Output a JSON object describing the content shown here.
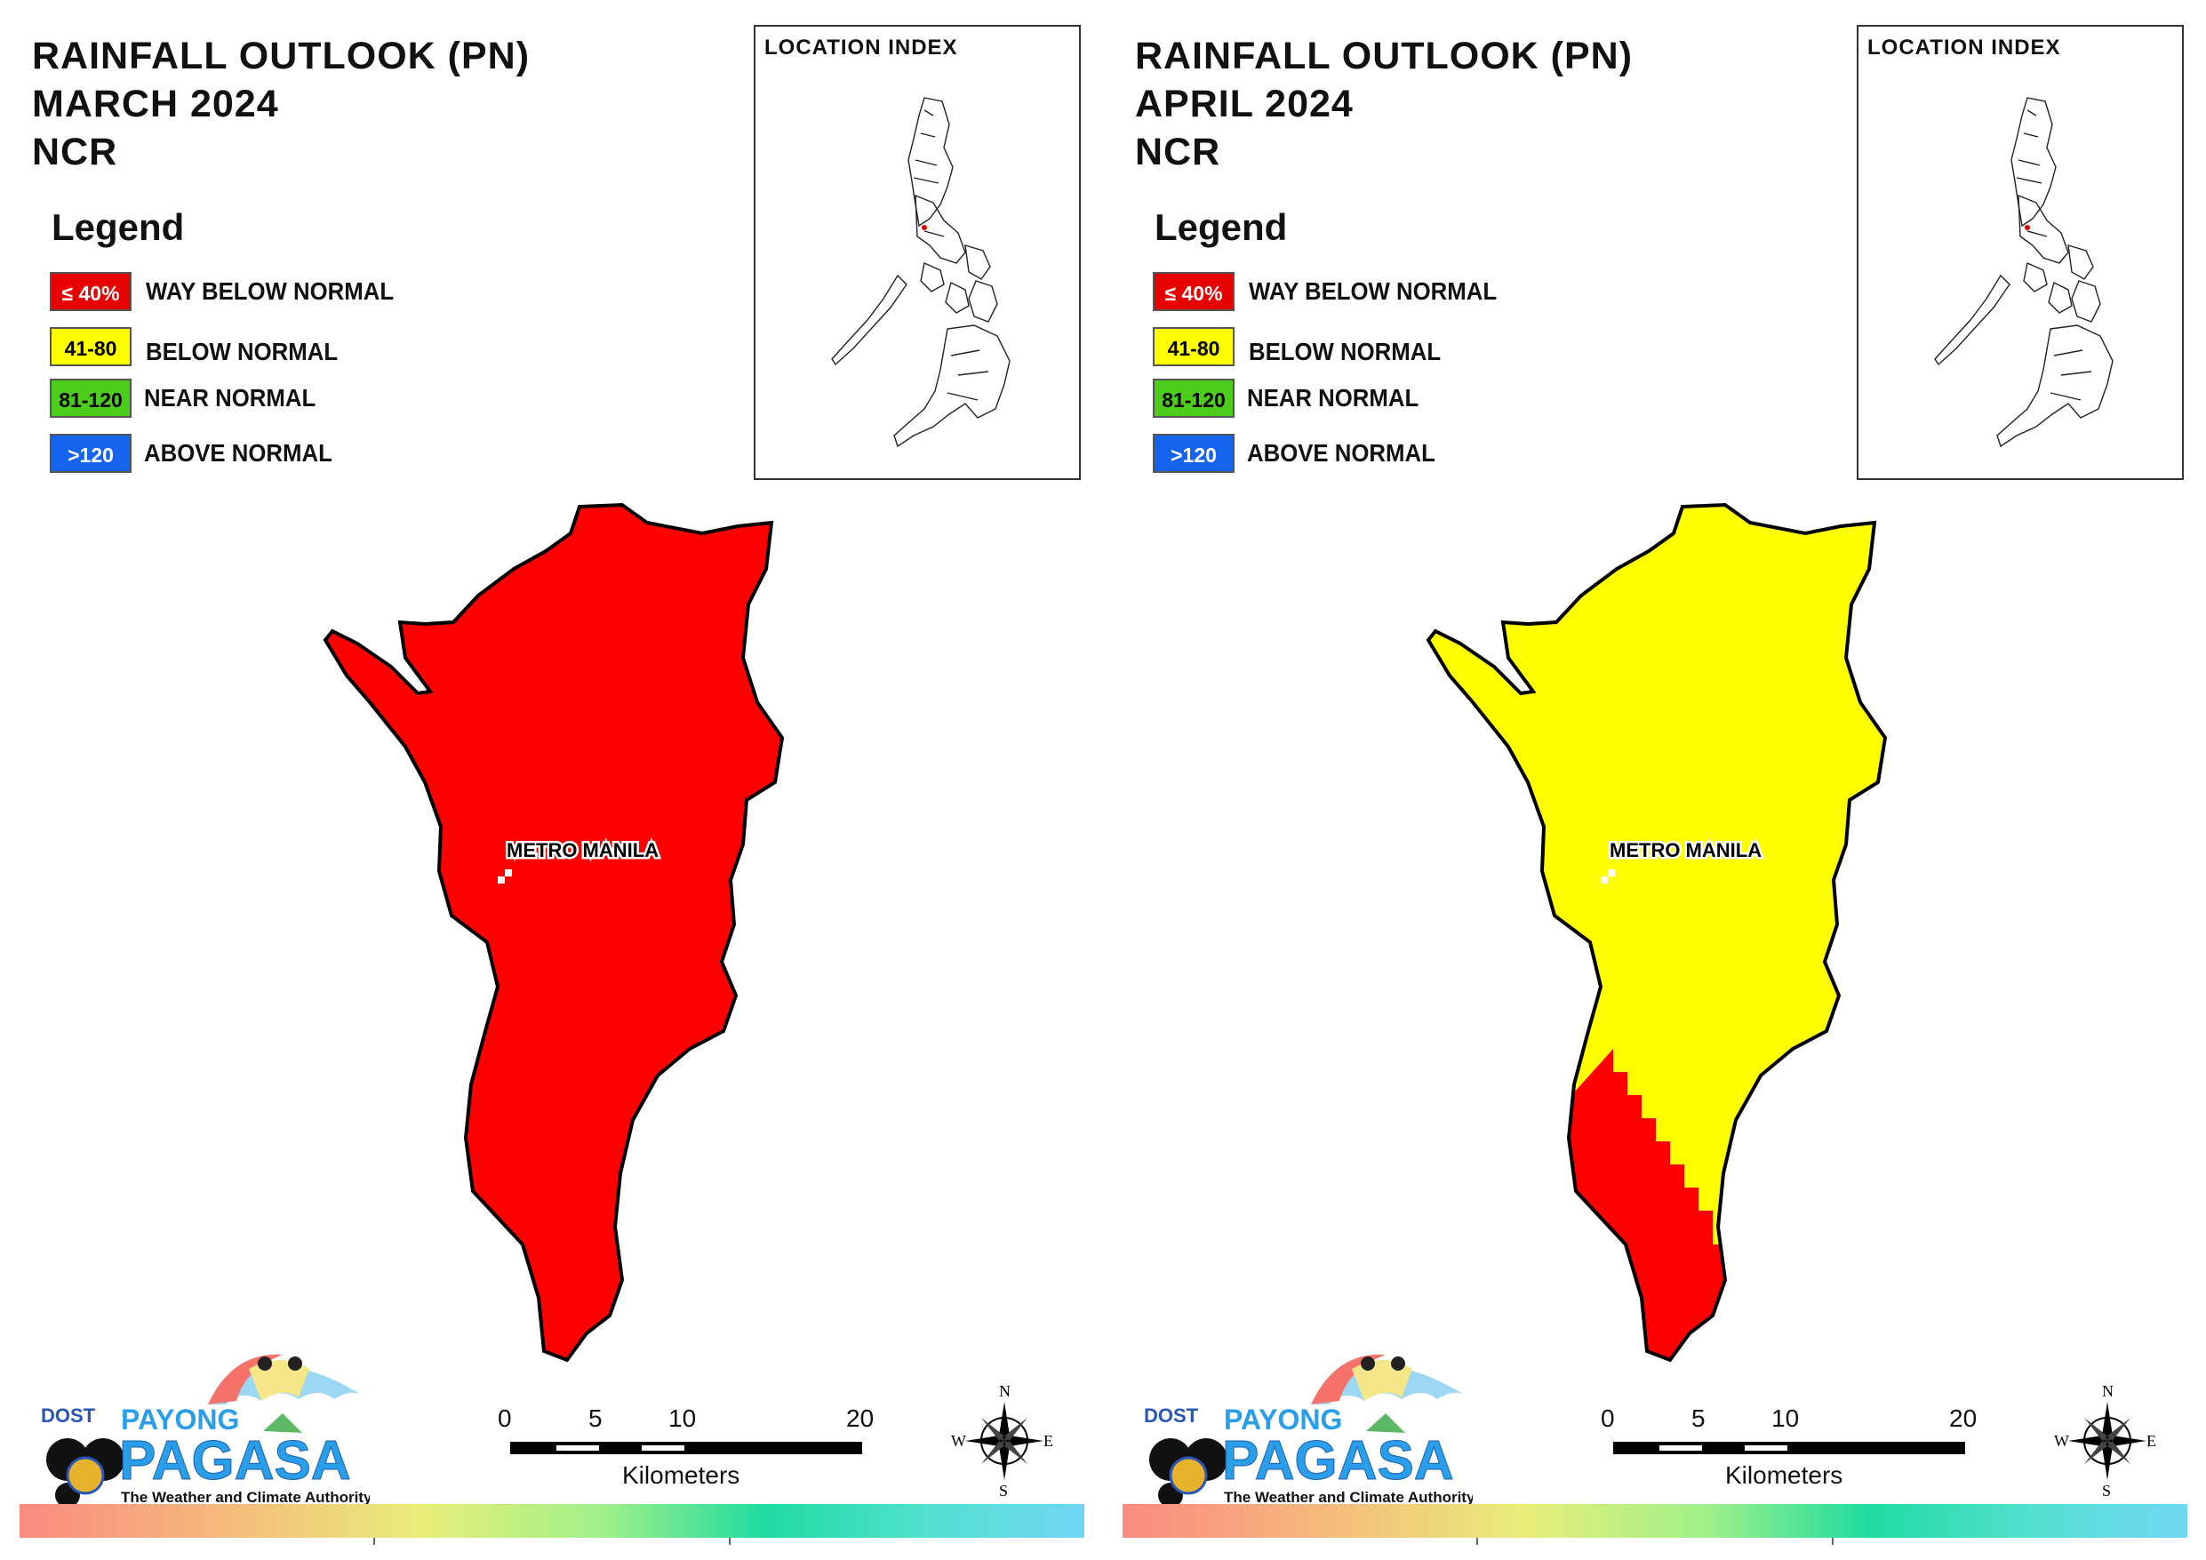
{
  "panels": [
    {
      "title_lines": [
        "RAINFALL OUTLOOK (PN)",
        "MARCH 2024",
        "NCR"
      ],
      "region_fill": "#ff0000",
      "southwest_fill": "#ff0000"
    },
    {
      "title_lines": [
        "RAINFALL OUTLOOK (PN)",
        "APRIL 2024",
        "NCR"
      ],
      "region_fill": "#ffff00",
      "southwest_fill": "#ff0000"
    }
  ],
  "legend": {
    "title": "Legend",
    "items": [
      {
        "range": "≤ 40%",
        "label": "WAY BELOW NORMAL",
        "color": "#e60000",
        "text_color": "#ffffff"
      },
      {
        "range": "41-80",
        "label": "BELOW NORMAL",
        "color": "#ffff00",
        "text_color": "#000000"
      },
      {
        "range": "81-120",
        "label": "NEAR NORMAL",
        "color": "#4ccd1c",
        "text_color": "#000000"
      },
      {
        "range": ">120",
        "label": "ABOVE NORMAL",
        "color": "#1464f0",
        "text_color": "#ffffff"
      }
    ]
  },
  "location_index": {
    "title": "LOCATION INDEX"
  },
  "map_label": "METRO MANILA",
  "logo": {
    "dost": "DOST",
    "payong": "PAYONG",
    "pagasa": "PAGASA",
    "tagline": "The Weather and Climate Authority"
  },
  "scale": {
    "ticks": [
      "0",
      "5",
      "10",
      "20"
    ],
    "unit": "Kilometers"
  },
  "compass": {
    "n": "N",
    "s": "S",
    "e": "E",
    "w": "W"
  }
}
